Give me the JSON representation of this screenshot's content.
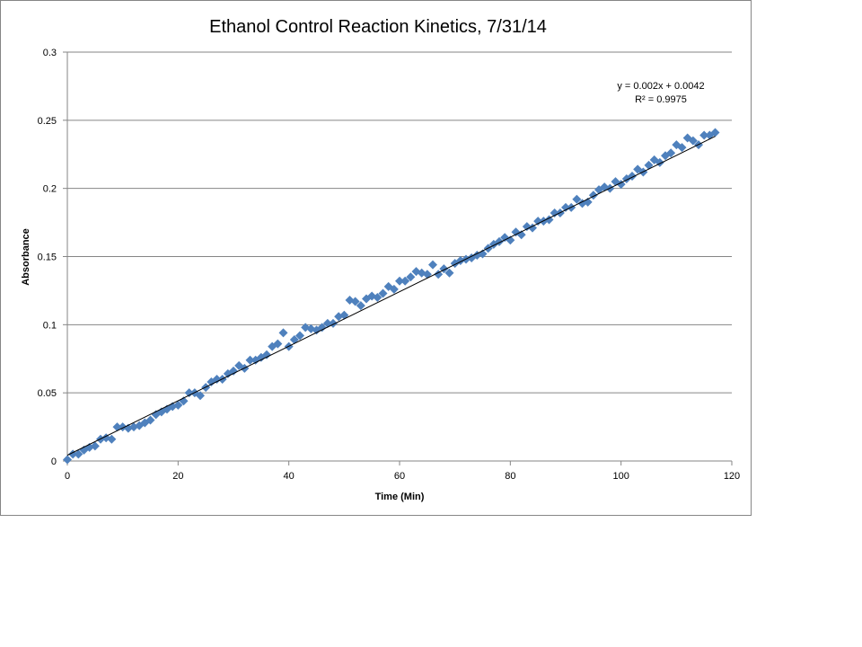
{
  "chart_data": {
    "type": "scatter",
    "title": "Ethanol Control Reaction Kinetics, 7/31/14",
    "xlabel": "Time (Min)",
    "ylabel": "Absorbance",
    "xlim": [
      0,
      120
    ],
    "ylim": [
      0,
      0.3
    ],
    "x_ticks": [
      "0",
      "20",
      "40",
      "60",
      "80",
      "100",
      "120"
    ],
    "y_ticks": [
      "0",
      "0.05",
      "0.1",
      "0.15",
      "0.2",
      "0.25",
      "0.3"
    ],
    "grid": "horizontal",
    "legend": "none",
    "marker_color": "#4F81BD",
    "trendline": {
      "type": "linear",
      "slope": 0.002,
      "intercept": 0.0042,
      "color": "#000000",
      "equation_text": "y = 0.002x + 0.0042",
      "r2_text": "R² = 0.9975"
    },
    "series": [
      {
        "x": [
          0,
          1,
          2,
          3,
          4,
          5,
          6,
          7,
          8,
          9,
          10,
          11,
          12,
          13,
          14,
          15,
          16,
          17,
          18,
          19,
          20,
          21,
          22,
          23,
          24,
          25,
          26,
          27,
          28,
          29,
          30,
          31,
          32,
          33,
          34,
          35,
          36,
          37,
          38,
          39,
          40,
          41,
          42,
          43,
          44,
          45,
          46,
          47,
          48,
          49,
          50,
          51,
          52,
          53,
          54,
          55,
          56,
          57,
          58,
          59,
          60,
          61,
          62,
          63,
          64,
          65,
          66,
          67,
          68,
          69,
          70,
          71,
          72,
          73,
          74,
          75,
          76,
          77,
          78,
          79,
          80,
          81,
          82,
          83,
          84,
          85,
          86,
          87,
          88,
          89,
          90,
          91,
          92,
          93,
          94,
          95,
          96,
          97,
          98,
          99,
          100,
          101,
          102,
          103,
          104,
          105,
          106,
          107,
          108,
          109,
          110,
          111,
          112,
          113,
          114,
          115,
          116,
          117
        ],
        "y": [
          0.001,
          0.005,
          0.005,
          0.008,
          0.01,
          0.011,
          0.016,
          0.017,
          0.016,
          0.025,
          0.025,
          0.024,
          0.025,
          0.026,
          0.028,
          0.03,
          0.034,
          0.036,
          0.038,
          0.04,
          0.041,
          0.044,
          0.05,
          0.05,
          0.048,
          0.054,
          0.058,
          0.06,
          0.06,
          0.064,
          0.066,
          0.07,
          0.068,
          0.074,
          0.074,
          0.076,
          0.078,
          0.084,
          0.086,
          0.094,
          0.084,
          0.089,
          0.092,
          0.098,
          0.097,
          0.096,
          0.098,
          0.101,
          0.101,
          0.106,
          0.107,
          0.118,
          0.117,
          0.114,
          0.119,
          0.121,
          0.12,
          0.123,
          0.128,
          0.126,
          0.132,
          0.132,
          0.135,
          0.139,
          0.138,
          0.137,
          0.144,
          0.137,
          0.141,
          0.138,
          0.145,
          0.147,
          0.148,
          0.149,
          0.151,
          0.152,
          0.156,
          0.159,
          0.161,
          0.164,
          0.162,
          0.168,
          0.166,
          0.172,
          0.171,
          0.176,
          0.176,
          0.177,
          0.182,
          0.182,
          0.186,
          0.186,
          0.192,
          0.189,
          0.19,
          0.195,
          0.199,
          0.201,
          0.2,
          0.205,
          0.203,
          0.207,
          0.209,
          0.214,
          0.212,
          0.217,
          0.221,
          0.219,
          0.224,
          0.226,
          0.232,
          0.23,
          0.237,
          0.235,
          0.232,
          0.239,
          0.239,
          0.241
        ]
      }
    ]
  }
}
